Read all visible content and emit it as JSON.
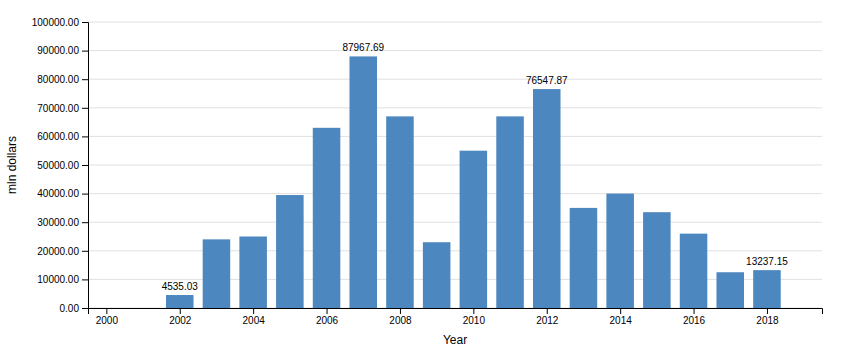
{
  "chart_data": {
    "type": "bar",
    "x": [
      2002,
      2003,
      2004,
      2005,
      2006,
      2007,
      2008,
      2009,
      2010,
      2011,
      2012,
      2013,
      2014,
      2015,
      2016,
      2017,
      2018
    ],
    "values": [
      4535.03,
      24000,
      25000,
      39500,
      63000,
      87967.69,
      67000,
      23000,
      55000,
      67000,
      76547.87,
      35000,
      40000,
      33500,
      26000,
      12500,
      13237.15
    ],
    "color": "#4d87c0",
    "xlabel": "Year",
    "ylabel": "mln dollars",
    "xlim": [
      1999.5,
      2019.5
    ],
    "ylim": [
      0,
      100000
    ],
    "xticks": [
      2000,
      2002,
      2004,
      2006,
      2008,
      2010,
      2012,
      2014,
      2016,
      2018
    ],
    "yticks": [
      {
        "value": 0,
        "label": "0.00"
      },
      {
        "value": 10000,
        "label": "10000.00"
      },
      {
        "value": 20000,
        "label": "20000.00"
      },
      {
        "value": 30000,
        "label": "30000.00"
      },
      {
        "value": 40000,
        "label": "40000.00"
      },
      {
        "value": 50000,
        "label": "50000.00"
      },
      {
        "value": 60000,
        "label": "60000.00"
      },
      {
        "value": 70000,
        "label": "70000.00"
      },
      {
        "value": 80000,
        "label": "80000.00"
      },
      {
        "value": 90000,
        "label": "90000.00"
      },
      {
        "value": 100000,
        "label": "100000.00"
      }
    ],
    "annotations": [
      {
        "x": 2002,
        "text": "4535.03"
      },
      {
        "x": 2007,
        "text": "87967.69"
      },
      {
        "x": 2012,
        "text": "76547.87"
      },
      {
        "x": 2018,
        "text": "13237.15"
      }
    ],
    "grid": true
  }
}
